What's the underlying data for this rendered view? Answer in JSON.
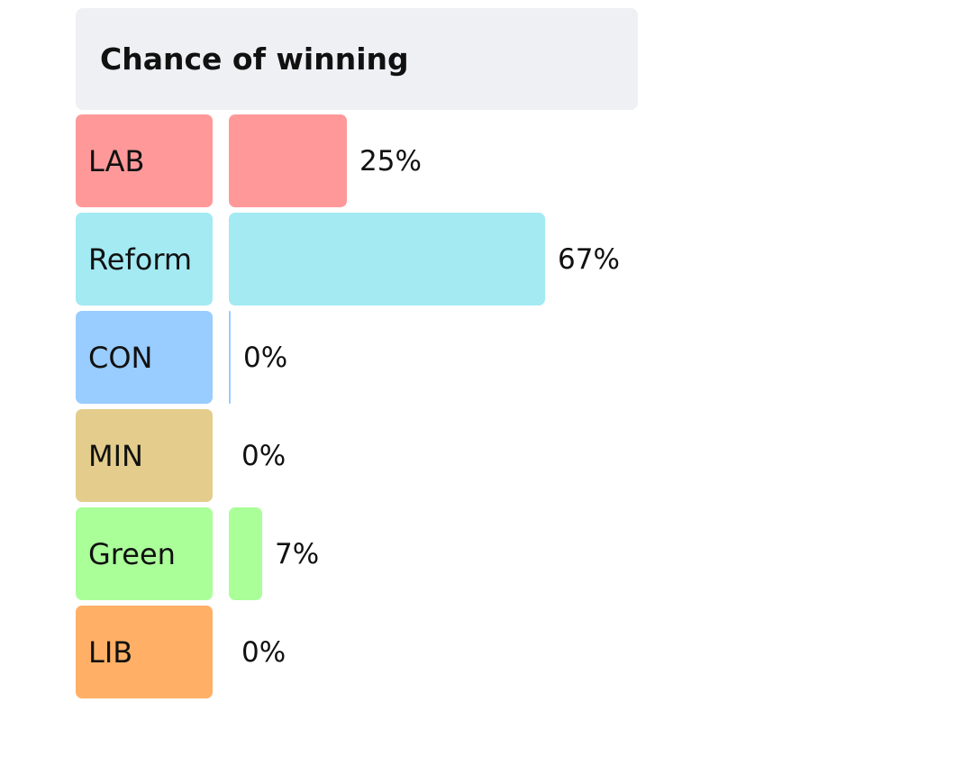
{
  "header": {
    "title": "Chance of winning"
  },
  "chart_data": {
    "type": "bar",
    "title": "Chance of winning",
    "categories": [
      "LAB",
      "Reform",
      "CON",
      "MIN",
      "Green",
      "LIB"
    ],
    "values": [
      25,
      67,
      0,
      0,
      7,
      0
    ],
    "value_labels": [
      "25%",
      "67%",
      "0%",
      "0%",
      "7%",
      "0%"
    ],
    "unit": "%",
    "colors": [
      "#ff9999",
      "#a3eaf3",
      "#99ccff",
      "#e4cd8c",
      "#aaff99",
      "#ffb066"
    ],
    "orientation": "horizontal",
    "xlim": [
      0,
      100
    ]
  }
}
